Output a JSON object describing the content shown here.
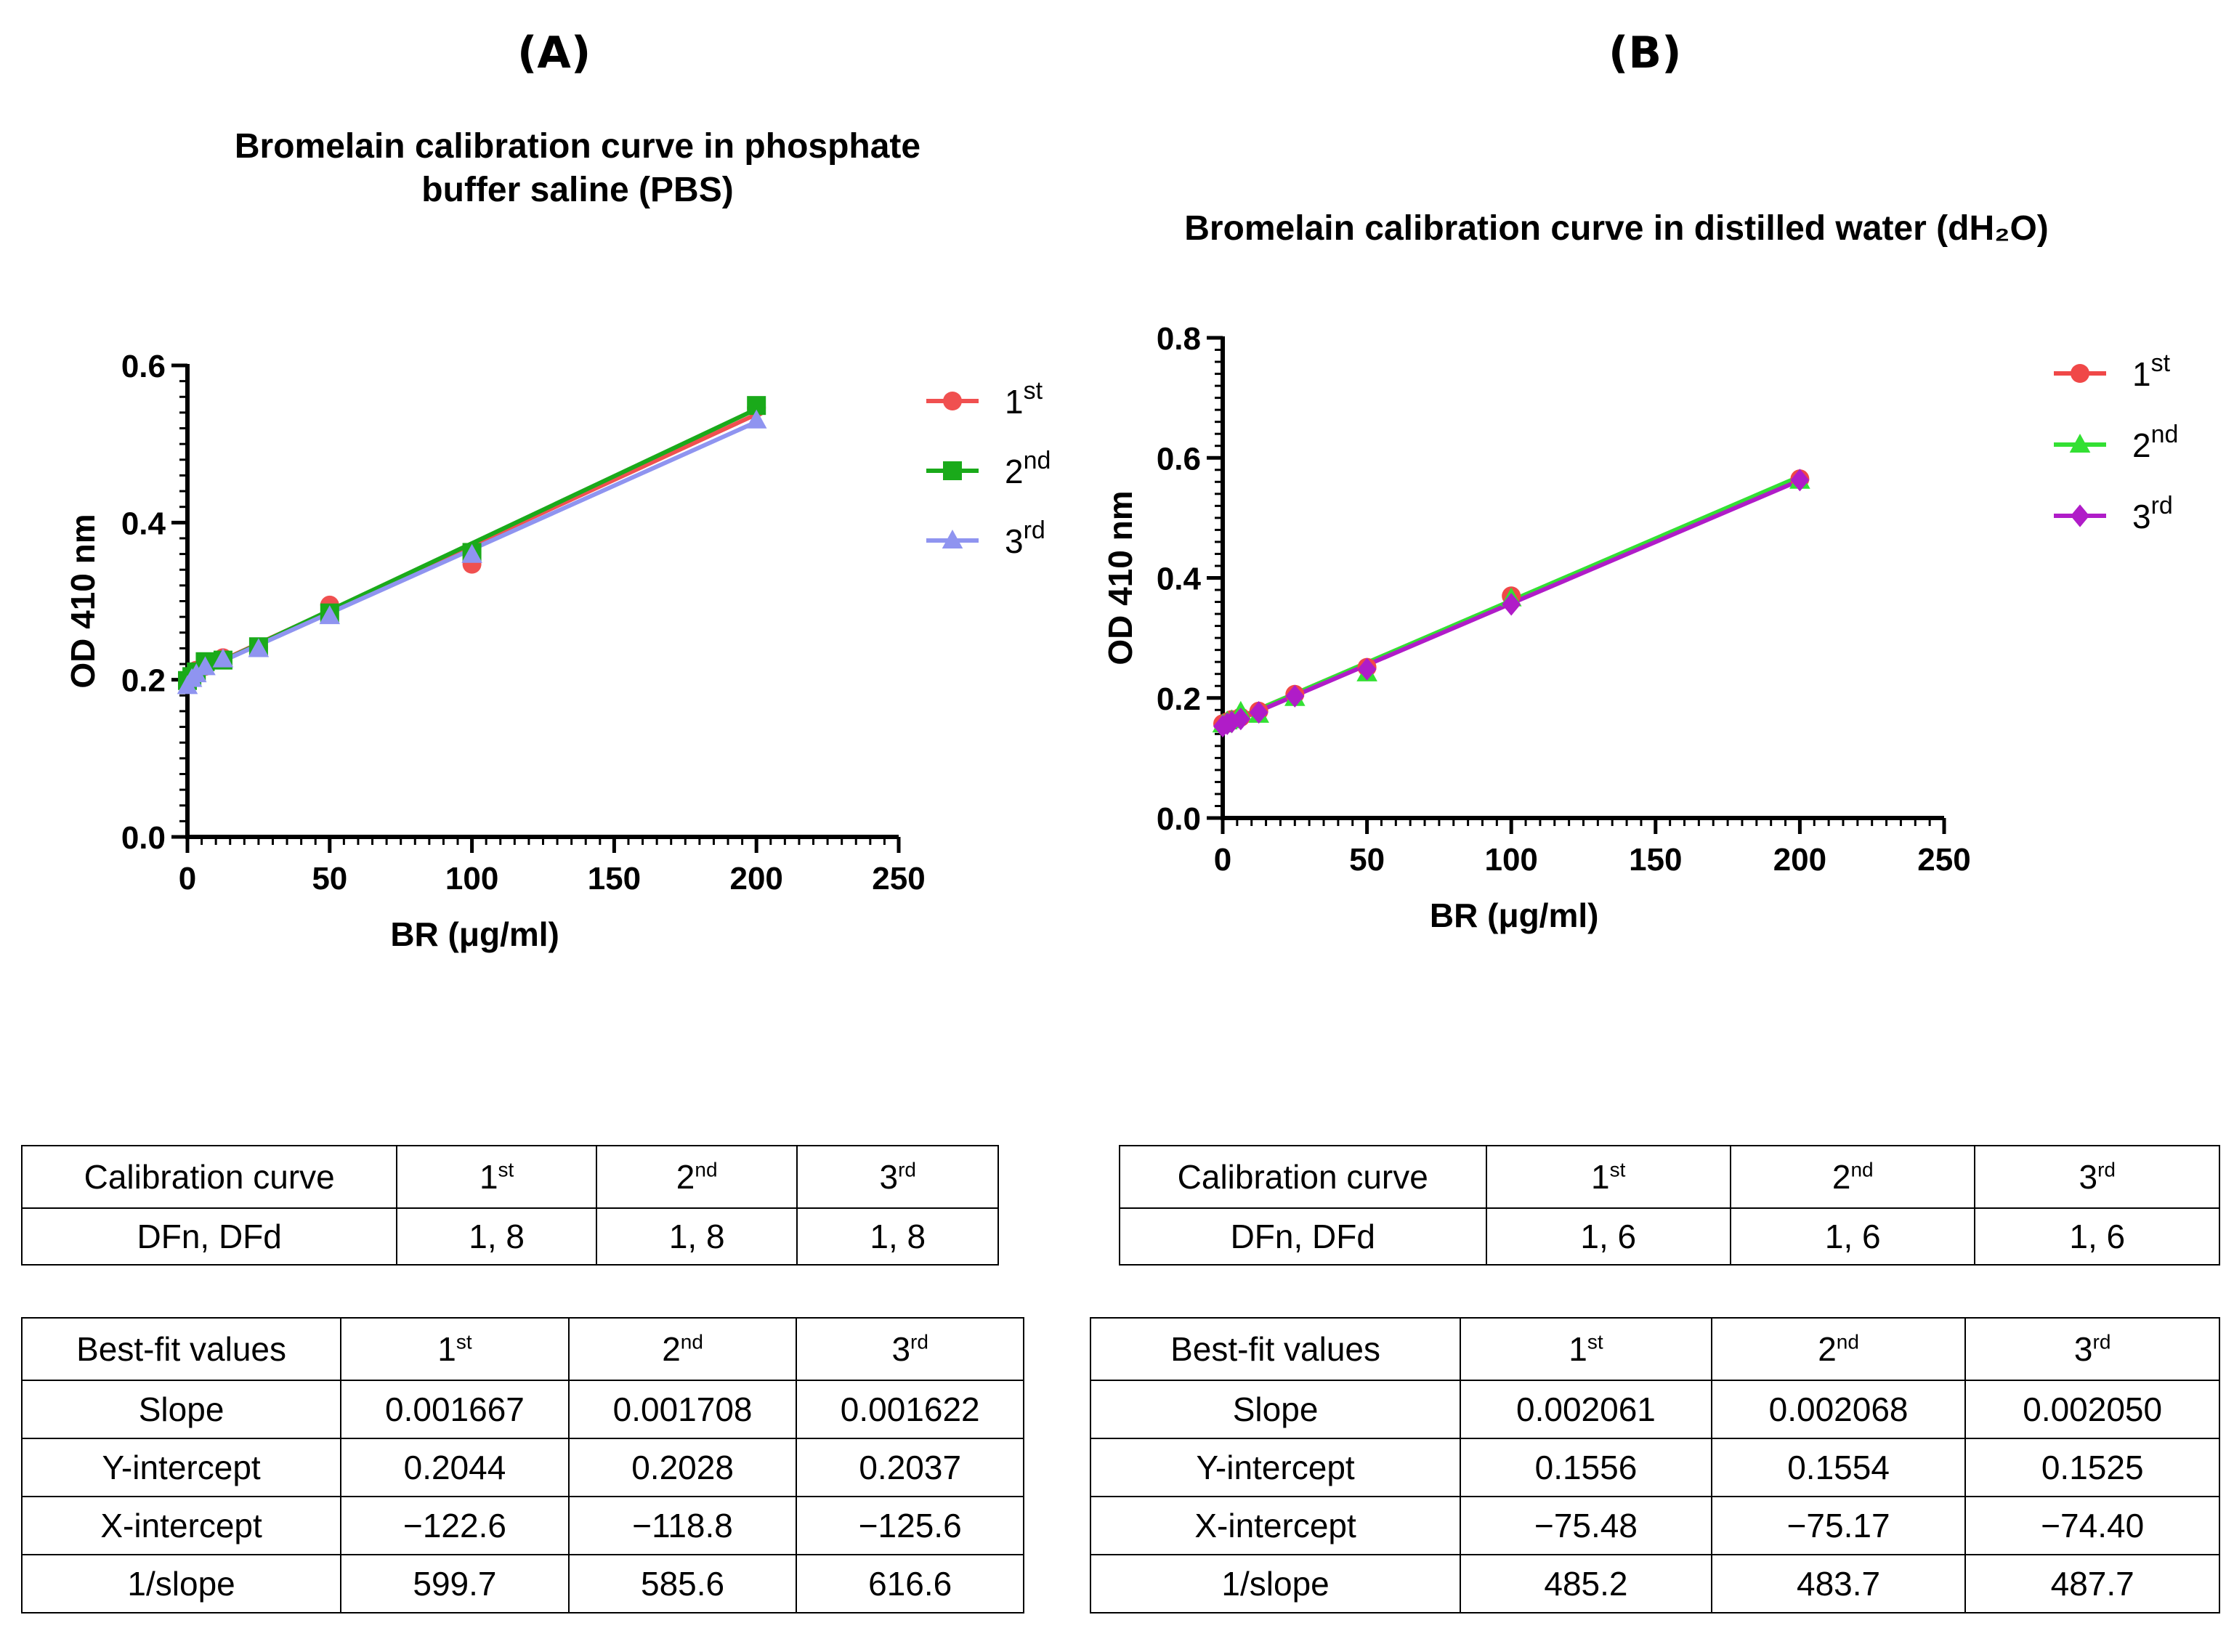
{
  "panels": [
    {
      "label": "(A)",
      "chart_title_lines": [
        "Bromelain calibration curve in phosphate",
        "buffer saline (PBS)"
      ],
      "xlabel": "BR (μg/ml)",
      "ylabel": "OD 410 nm",
      "x_ticks": [
        "0",
        "50",
        "100",
        "150",
        "200",
        "250"
      ],
      "y_ticks": [
        "0.0",
        "0.2",
        "0.4",
        "0.6"
      ],
      "legend": [
        {
          "base": "1",
          "sup": "st"
        },
        {
          "base": "2",
          "sup": "nd"
        },
        {
          "base": "3",
          "sup": "rd"
        }
      ],
      "table1": {
        "header": [
          "Calibration curve",
          "1|st",
          "2|nd",
          "3|rd"
        ],
        "rows": [
          [
            "DFn, DFd",
            "1, 8",
            "1, 8",
            "1, 8"
          ]
        ]
      },
      "table2": {
        "header": [
          "Best-fit values",
          "1|st",
          "2|nd",
          "3|rd"
        ],
        "rows": [
          [
            "Slope",
            "0.001667",
            "0.001708",
            "0.001622"
          ],
          [
            "Y-intercept",
            "0.2044",
            "0.2028",
            "0.2037"
          ],
          [
            "X-intercept",
            "−122.6",
            "−118.8",
            "−125.6"
          ],
          [
            "1/slope",
            "599.7",
            "585.6",
            "616.6"
          ]
        ]
      }
    },
    {
      "label": "(B)",
      "chart_title_lines": [
        "Bromelain calibration curve in distilled water (dH₂O)"
      ],
      "xlabel": "BR (μg/ml)",
      "ylabel": "OD 410 nm",
      "x_ticks": [
        "0",
        "50",
        "100",
        "150",
        "200",
        "250"
      ],
      "y_ticks": [
        "0.0",
        "0.2",
        "0.4",
        "0.6",
        "0.8"
      ],
      "legend": [
        {
          "base": "1",
          "sup": "st"
        },
        {
          "base": "2",
          "sup": "nd"
        },
        {
          "base": "3",
          "sup": "rd"
        }
      ],
      "table1": {
        "header": [
          "Calibration curve",
          "1|st",
          "2|nd",
          "3|rd"
        ],
        "rows": [
          [
            "DFn, DFd",
            "1, 6",
            "1, 6",
            "1, 6"
          ]
        ]
      },
      "table2": {
        "header": [
          "Best-fit values",
          "1|st",
          "2|nd",
          "3|rd"
        ],
        "rows": [
          [
            "Slope",
            "0.002061",
            "0.002068",
            "0.002050"
          ],
          [
            "Y-intercept",
            "0.1556",
            "0.1554",
            "0.1525"
          ],
          [
            "X-intercept",
            "−75.48",
            "−75.17",
            "−74.40"
          ],
          [
            "1/slope",
            "485.2",
            "483.7",
            "487.7"
          ]
        ]
      }
    }
  ],
  "chart_data": [
    {
      "type": "line",
      "title": "Bromelain calibration curve in phosphate buffer saline (PBS)",
      "xlabel": "BR (μg/ml)",
      "ylabel": "OD 410 nm",
      "xlim": [
        0,
        250
      ],
      "ylim": [
        0,
        0.6
      ],
      "x_major_step": 50,
      "y_major_step": 0.2,
      "legend_position": "right",
      "series": [
        {
          "name": "1st",
          "color": "#f05050",
          "marker": "circle",
          "x": [
            0,
            1.5625,
            3.125,
            6.25,
            12.5,
            25,
            50,
            100,
            200
          ],
          "y": [
            0.198,
            0.205,
            0.212,
            0.217,
            0.228,
            0.241,
            0.295,
            0.347,
            0.546
          ],
          "fit": {
            "slope": 0.001667,
            "intercept": 0.2044
          }
        },
        {
          "name": "2nd",
          "color": "#1aaa1a",
          "marker": "square",
          "x": [
            0,
            1.5625,
            3.125,
            6.25,
            12.5,
            25,
            50,
            100,
            200
          ],
          "y": [
            0.199,
            0.204,
            0.21,
            0.223,
            0.225,
            0.242,
            0.285,
            0.362,
            0.549
          ],
          "fit": {
            "slope": 0.001708,
            "intercept": 0.2028
          }
        },
        {
          "name": "3rd",
          "color": "#8f94f0",
          "marker": "triangle",
          "x": [
            0,
            1.5625,
            3.125,
            6.25,
            12.5,
            25,
            50,
            100,
            200
          ],
          "y": [
            0.192,
            0.201,
            0.207,
            0.216,
            0.226,
            0.239,
            0.281,
            0.359,
            0.53
          ],
          "fit": {
            "slope": 0.001622,
            "intercept": 0.2037
          }
        }
      ]
    },
    {
      "type": "line",
      "title": "Bromelain calibration curve in distilled water (dH₂O)",
      "xlabel": "BR (μg/ml)",
      "ylabel": "OD 410 nm",
      "xlim": [
        0,
        250
      ],
      "ylim": [
        0,
        0.8
      ],
      "x_major_step": 50,
      "y_major_step": 0.2,
      "legend_position": "right",
      "series": [
        {
          "name": "1st",
          "color": "#f04848",
          "marker": "circle",
          "x": [
            0,
            1.5625,
            3.125,
            6.25,
            12.5,
            25,
            50,
            100,
            200
          ],
          "y": [
            0.157,
            0.16,
            0.164,
            0.168,
            0.178,
            0.206,
            0.251,
            0.37,
            0.565
          ],
          "fit": {
            "slope": 0.002061,
            "intercept": 0.1556
          }
        },
        {
          "name": "2nd",
          "color": "#33e033",
          "marker": "triangle",
          "x": [
            0,
            1.5625,
            3.125,
            6.25,
            12.5,
            25,
            50,
            100,
            200
          ],
          "y": [
            0.156,
            0.161,
            0.163,
            0.177,
            0.172,
            0.2,
            0.241,
            0.366,
            0.562
          ],
          "fit": {
            "slope": 0.002068,
            "intercept": 0.1554
          }
        },
        {
          "name": "3rd",
          "color": "#b01cc8",
          "marker": "diamond",
          "x": [
            0,
            1.5625,
            3.125,
            6.25,
            12.5,
            25,
            50,
            100,
            200
          ],
          "y": [
            0.153,
            0.157,
            0.16,
            0.165,
            0.176,
            0.203,
            0.248,
            0.356,
            0.563
          ],
          "fit": {
            "slope": 0.00205,
            "intercept": 0.1525
          }
        }
      ]
    }
  ]
}
